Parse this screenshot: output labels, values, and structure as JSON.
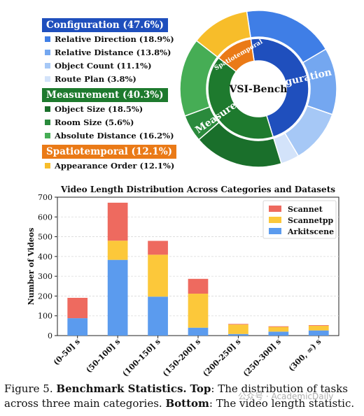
{
  "chart_data": [
    {
      "type": "pie",
      "center_label": "VSI-Bench",
      "categories": [
        {
          "name": "Configuration",
          "pct_label": "(47.6%)",
          "value": 47.6,
          "color": "#1f4fbd",
          "items": [
            {
              "name": "Relative Direction",
              "pct_label": "(18.9%)",
              "value": 18.9,
              "color": "#3f7ee6"
            },
            {
              "name": "Relative Distance",
              "pct_label": "(13.8%)",
              "value": 13.8,
              "color": "#74a7f0"
            },
            {
              "name": "Object Count",
              "pct_label": "(11.1%)",
              "value": 11.1,
              "color": "#a6c8f6"
            },
            {
              "name": "Route Plan",
              "pct_label": "(3.8%)",
              "value": 3.8,
              "color": "#d3e3fa"
            }
          ]
        },
        {
          "name": "Measurement",
          "pct_label": "(40.3%)",
          "value": 40.3,
          "color": "#1e7a2e",
          "items": [
            {
              "name": "Object Size",
              "pct_label": "(18.5%)",
              "value": 18.5,
              "color": "#1a6f2b"
            },
            {
              "name": "Room Size",
              "pct_label": "(5.6%)",
              "value": 5.6,
              "color": "#2a8a3c"
            },
            {
              "name": "Absolute Distance",
              "pct_label": "(16.2%)",
              "value": 16.2,
              "color": "#46ad55"
            }
          ]
        },
        {
          "name": "Spatiotemporal",
          "pct_label": "(12.1%)",
          "value": 12.1,
          "color": "#ea7a17",
          "items": [
            {
              "name": "Appearance Order",
              "pct_label": "(12.1%)",
              "value": 12.1,
              "color": "#f7bd2a"
            }
          ]
        }
      ]
    },
    {
      "type": "bar",
      "stacked": true,
      "title": "Video Length Distribution Across Categories and Datasets",
      "ylabel": "Number of Videos",
      "xlabel": "",
      "categories": [
        "(0-50] s",
        "(50-100] s",
        "(100-150] s",
        "(150-200] s",
        "(200-250] s",
        "(250-300] s",
        "(300, ∞) s"
      ],
      "ylim": [
        0,
        700
      ],
      "yticks": [
        0,
        100,
        200,
        300,
        400,
        500,
        600,
        700
      ],
      "grid": true,
      "legend_position": "top-right",
      "series": [
        {
          "name": "Arkitscene",
          "color": "#5b9bee",
          "values": [
            88,
            383,
            197,
            40,
            8,
            20,
            26
          ]
        },
        {
          "name": "Scannetpp",
          "color": "#fcc83a",
          "values": [
            0,
            97,
            212,
            172,
            48,
            24,
            24
          ]
        },
        {
          "name": "Scannet",
          "color": "#ee6a5f",
          "values": [
            103,
            192,
            70,
            75,
            3,
            3,
            3
          ]
        }
      ],
      "legend_order": [
        "Scannet",
        "Scannetpp",
        "Arkitscene"
      ]
    }
  ],
  "caption": {
    "figure_label": "Figure 5.",
    "bold_title": "Benchmark Statistics.",
    "top_label": "Top",
    "top_text": ": The distribution of tasks across three main categories.",
    "bottom_label": "Bottom",
    "bottom_text": ": The video length statistic."
  },
  "watermark": "公众号 · AcademicDaily"
}
